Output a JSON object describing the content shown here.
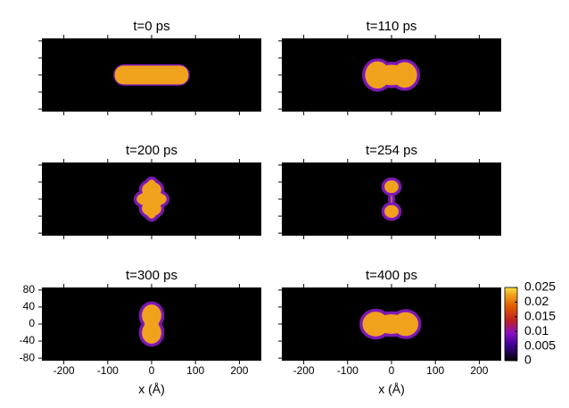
{
  "chart_data": [
    {
      "type": "heatmap",
      "title": "t=0 ps",
      "xlim": [
        -250,
        250
      ],
      "ylim": [
        -86,
        86
      ],
      "xticks": [
        -200,
        -100,
        0,
        100,
        200
      ],
      "yticks": [
        -80,
        -40,
        0,
        40,
        80
      ],
      "xtick_labels": false,
      "ytick_labels": false
    },
    {
      "type": "heatmap",
      "title": "t=110 ps",
      "xlim": [
        -250,
        250
      ],
      "ylim": [
        -86,
        86
      ],
      "xticks": [
        -200,
        -100,
        0,
        100,
        200
      ],
      "yticks": [
        -80,
        -40,
        0,
        40,
        80
      ],
      "xtick_labels": false,
      "ytick_labels": false
    },
    {
      "type": "heatmap",
      "title": "t=200 ps",
      "xlim": [
        -250,
        250
      ],
      "ylim": [
        -86,
        86
      ],
      "xticks": [
        -200,
        -100,
        0,
        100,
        200
      ],
      "yticks": [
        -80,
        -40,
        0,
        40,
        80
      ],
      "xtick_labels": false,
      "ytick_labels": false
    },
    {
      "type": "heatmap",
      "title": "t=254 ps",
      "xlim": [
        -250,
        250
      ],
      "ylim": [
        -86,
        86
      ],
      "xticks": [
        -200,
        -100,
        0,
        100,
        200
      ],
      "yticks": [
        -80,
        -40,
        0,
        40,
        80
      ],
      "xtick_labels": false,
      "ytick_labels": false
    },
    {
      "type": "heatmap",
      "title": "t=300 ps",
      "x_label": "x  (Å)",
      "xlim": [
        -250,
        250
      ],
      "ylim": [
        -86,
        86
      ],
      "xticks": [
        -200,
        -100,
        0,
        100,
        200
      ],
      "yticks": [
        -80,
        -40,
        0,
        40,
        80
      ],
      "xtick_labels": true,
      "ytick_labels": true
    },
    {
      "type": "heatmap",
      "title": "t=400 ps",
      "x_label": "x  (Å)",
      "xlim": [
        -250,
        250
      ],
      "ylim": [
        -86,
        86
      ],
      "xticks": [
        -200,
        -100,
        0,
        100,
        200
      ],
      "yticks": [
        -80,
        -40,
        0,
        40,
        80
      ],
      "xtick_labels": true,
      "ytick_labels": false,
      "colorbar": {
        "clim": [
          0,
          0.025
        ],
        "ticks": [
          0,
          0.005,
          0.01,
          0.015,
          0.02,
          0.025
        ]
      }
    }
  ]
}
